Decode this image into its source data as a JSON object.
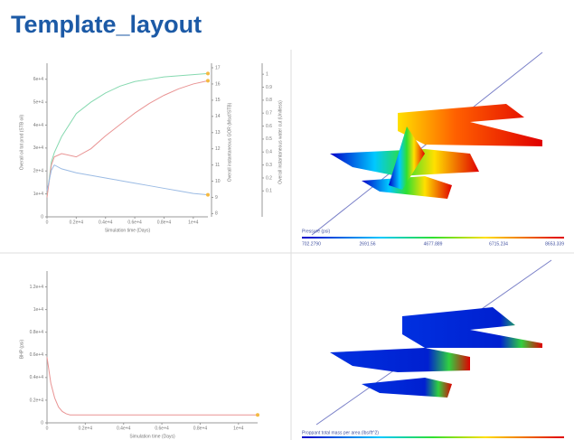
{
  "title": "Template_layout",
  "chart_data": [
    {
      "type": "line",
      "xlabel": "Simulation time (Days)",
      "ylabel": "Overall oil tot prod (STB oil)",
      "y2label": "Overall instantaneous GOR (Mscf/STB)",
      "y3label": "Overall instantaneous water cut (Unitless)",
      "x": [
        0,
        300,
        500,
        1000,
        2000,
        3000,
        4000,
        5000,
        6000,
        7000,
        8000,
        9000,
        10000,
        11000
      ],
      "xlim": [
        0,
        11000
      ],
      "xticks": [
        0,
        {
          "value": 2000,
          "label": "0.2e+4"
        },
        {
          "value": 4000,
          "label": "0.4e+4"
        },
        {
          "value": 6000,
          "label": "0.6e+4"
        },
        {
          "value": 8000,
          "label": "0.8e+4"
        },
        {
          "value": 10000,
          "label": "1e+4"
        }
      ],
      "ylim": [
        0,
        65000
      ],
      "yticks": [
        0,
        {
          "value": 10000,
          "label": "1e+4"
        },
        {
          "value": 20000,
          "label": "2e+4"
        },
        {
          "value": 30000,
          "label": "3e+4"
        },
        {
          "value": 40000,
          "label": "4e+4"
        },
        {
          "value": 50000,
          "label": "5e+4"
        },
        {
          "value": 60000,
          "label": "6e+4"
        }
      ],
      "y2lim": [
        7.8,
        17
      ],
      "y2ticks": [
        8,
        9,
        10,
        11,
        12,
        13,
        14,
        15,
        16,
        17
      ],
      "y3lim": [
        -0.1,
        1.05
      ],
      "y3ticks": [
        0.1,
        0.2,
        0.3,
        0.4,
        0.5,
        0.6,
        0.7,
        0.8,
        0.9,
        1
      ],
      "end_marker_color": "#f4b942",
      "series": [
        {
          "name": "Overall oil tot prod",
          "color": "#86d9b0",
          "axis": "y",
          "values": [
            9000,
            24000,
            28000,
            35000,
            45000,
            50000,
            54000,
            57000,
            59000,
            60000,
            61000,
            61500,
            62000,
            62500
          ]
        },
        {
          "name": "Overall instantaneous GOR",
          "color": "#e99494",
          "axis": "y2",
          "values": [
            9,
            11,
            11.5,
            11.7,
            11.5,
            12,
            12.8,
            13.5,
            14.2,
            14.8,
            15.3,
            15.7,
            16,
            16.2
          ]
        },
        {
          "name": "Overall instantaneous water cut",
          "color": "#9bbbe4",
          "axis": "y3",
          "values": [
            0.1,
            0.26,
            0.3,
            0.27,
            0.24,
            0.22,
            0.2,
            0.18,
            0.16,
            0.14,
            0.12,
            0.1,
            0.08,
            0.07
          ]
        }
      ]
    },
    {
      "type": "line",
      "xlabel": "Simulation time (Days)",
      "ylabel": "BHP (psi)",
      "x": [
        0,
        200,
        400,
        600,
        800,
        1000,
        1200,
        11000
      ],
      "xlim": [
        0,
        11000
      ],
      "xticks": [
        0,
        {
          "value": 2000,
          "label": "0.2e+4"
        },
        {
          "value": 4000,
          "label": "0.4e+4"
        },
        {
          "value": 6000,
          "label": "0.6e+4"
        },
        {
          "value": 8000,
          "label": "0.8e+4"
        },
        {
          "value": 10000,
          "label": "1e+4"
        }
      ],
      "ylim": [
        0,
        13000
      ],
      "yticks": [
        0,
        {
          "value": 2000,
          "label": "0.2e+4"
        },
        {
          "value": 4000,
          "label": "0.4e+4"
        },
        {
          "value": 6000,
          "label": "0.6e+4"
        },
        {
          "value": 8000,
          "label": "0.8e+4"
        },
        {
          "value": 10000,
          "label": "1e+4"
        },
        {
          "value": 12000,
          "label": "1.2e+4"
        }
      ],
      "end_marker_color": "#f4b942",
      "series": [
        {
          "name": "BHP",
          "color": "#e99494",
          "axis": "y",
          "values": [
            5800,
            3500,
            2200,
            1400,
            1000,
            800,
            700,
            700
          ]
        }
      ]
    }
  ],
  "views": [
    {
      "legend_title": "Pressure (psi)",
      "colorbar_labels": [
        "702.2790",
        "2691.56",
        "4677.889",
        "6715.234",
        "8653.339"
      ]
    },
    {
      "legend_title": "Proppant total mass per area (lbs/ft^2)"
    }
  ]
}
